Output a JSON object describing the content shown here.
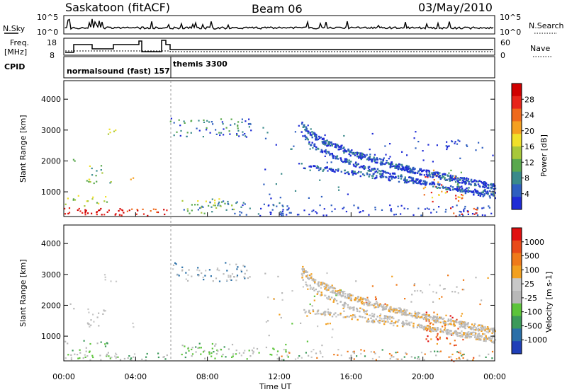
{
  "header": {
    "station": "Saskatoon (fitACF)",
    "beam": "Beam 06",
    "date": "03/May/2010"
  },
  "noise_panel": {
    "left_label": "N.Sky",
    "right_label": "N.Search",
    "yticks_left": [
      "10^5",
      "10^0"
    ],
    "yticks_right": [
      "10^5",
      "10^0"
    ]
  },
  "freq_panel": {
    "left_label": "Freq. [MHz]",
    "left_label_line1": "Freq.",
    "left_label_line2": "[MHz]",
    "right_label": "Nave",
    "yticks_left": [
      "18",
      "8"
    ],
    "yticks_right": [
      "60",
      "0"
    ]
  },
  "cpid_panel": {
    "label": "CPID",
    "modes": [
      {
        "name": "normalsound (fast) 157",
        "start": "00:00",
        "end": "06:00"
      },
      {
        "name": "themis 3300",
        "start": "06:00",
        "end": "24:00"
      }
    ]
  },
  "chart_data": [
    {
      "type": "heatmap",
      "title": "Power",
      "ylabel": "Slant Range [km]",
      "xlabel": "Time UT",
      "ylim": [
        200,
        4600
      ],
      "yticks": [
        "1000",
        "2000",
        "3000",
        "4000"
      ],
      "xticks": [
        "00:00",
        "04:00",
        "08:00",
        "12:00",
        "16:00",
        "20:00",
        "00:00"
      ],
      "colorbar": {
        "label": "Power [dB]",
        "ticks": [
          "4",
          "8",
          "12",
          "16",
          "20",
          "24",
          "28"
        ],
        "colors": [
          "#1f2bd6",
          "#2f5fc0",
          "#3a8a8a",
          "#5aa84e",
          "#a8c83a",
          "#f0e02a",
          "#f5a020",
          "#ef6a1c",
          "#e8251a",
          "#d00000"
        ]
      }
    },
    {
      "type": "heatmap",
      "title": "Velocity",
      "ylabel": "Slant Range [km]",
      "xlabel": "Time UT",
      "ylim": [
        200,
        4600
      ],
      "yticks": [
        "1000",
        "2000",
        "3000",
        "4000"
      ],
      "xticks": [
        "00:00",
        "04:00",
        "08:00",
        "12:00",
        "16:00",
        "20:00",
        "00:00"
      ],
      "colorbar": {
        "label": "Velocity [m s-1]",
        "ticks": [
          "1000",
          "500",
          "100",
          "25",
          "-25",
          "-100",
          "-500",
          "-1000"
        ],
        "colors": [
          "#1f3fb8",
          "#2a6fa8",
          "#3c9a5a",
          "#5cc43a",
          "#b8b8b8",
          "#c8c8c8",
          "#f2a020",
          "#ef7a1a",
          "#e84a18",
          "#e01010"
        ]
      }
    }
  ],
  "time_label": "Time UT"
}
